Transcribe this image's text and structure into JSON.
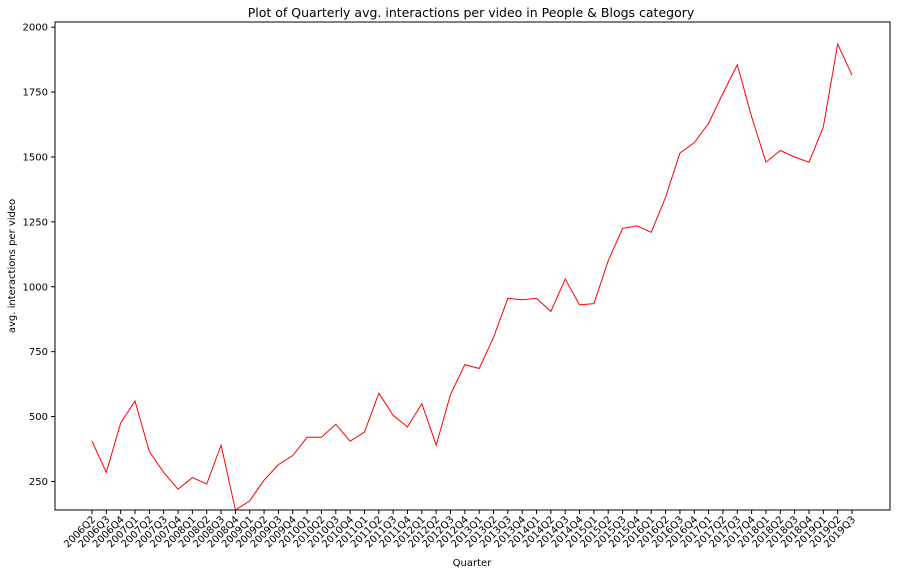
{
  "chart_data": {
    "type": "line",
    "title": "Plot of Quarterly avg. interactions per video in People & Blogs category",
    "xlabel": "Quarter",
    "ylabel": "avg. interactions per video",
    "ylim": [
      140,
      2020
    ],
    "yticks": [
      250,
      500,
      750,
      1000,
      1250,
      1500,
      1750,
      2000
    ],
    "grid": false,
    "legend": "none",
    "line_color": "#ff0000",
    "categories": [
      "2006Q2",
      "2006Q3",
      "2006Q4",
      "2007Q1",
      "2007Q2",
      "2007Q3",
      "2007Q4",
      "2008Q1",
      "2008Q2",
      "2008Q3",
      "2008Q4",
      "2009Q1",
      "2009Q2",
      "2009Q3",
      "2009Q4",
      "2010Q1",
      "2010Q2",
      "2010Q3",
      "2010Q4",
      "2011Q1",
      "2011Q2",
      "2011Q3",
      "2011Q4",
      "2012Q1",
      "2012Q2",
      "2012Q3",
      "2012Q4",
      "2013Q1",
      "2013Q2",
      "2013Q3",
      "2013Q4",
      "2014Q1",
      "2014Q2",
      "2014Q3",
      "2014Q4",
      "2015Q1",
      "2015Q2",
      "2015Q3",
      "2015Q4",
      "2016Q1",
      "2016Q2",
      "2016Q3",
      "2016Q4",
      "2017Q1",
      "2017Q2",
      "2017Q3",
      "2017Q4",
      "2018Q1",
      "2018Q2",
      "2018Q3",
      "2018Q4",
      "2019Q1",
      "2019Q2",
      "2019Q3"
    ],
    "values": [
      405,
      285,
      475,
      560,
      365,
      285,
      220,
      265,
      240,
      390,
      140,
      175,
      255,
      315,
      350,
      420,
      420,
      470,
      405,
      440,
      590,
      505,
      460,
      550,
      390,
      585,
      700,
      685,
      805,
      955,
      950,
      955,
      905,
      1030,
      930,
      935,
      1100,
      1225,
      1235,
      1210,
      1345,
      1515,
      1555,
      1630,
      1745,
      1855,
      1655,
      1480,
      1525,
      1500,
      1480,
      1615,
      1935,
      1815
    ]
  }
}
